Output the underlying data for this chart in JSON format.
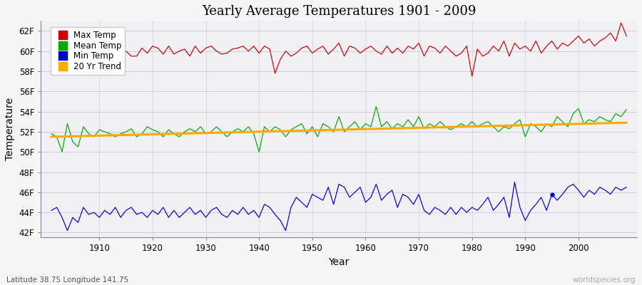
{
  "title": "Yearly Average Temperatures 1901 - 2009",
  "xlabel": "Year",
  "ylabel": "Temperature",
  "lat_lon_label": "Latitude 38.75 Longitude 141.75",
  "watermark": "worldspecies.org",
  "years_start": 1901,
  "years_end": 2009,
  "ylim_min": 41.5,
  "ylim_max": 63.0,
  "yticks": [
    42,
    44,
    46,
    48,
    50,
    52,
    54,
    56,
    58,
    60,
    62
  ],
  "ytick_labels": [
    "42F",
    "44F",
    "46F",
    "48F",
    "50F",
    "52F",
    "54F",
    "56F",
    "58F",
    "60F",
    "62F"
  ],
  "fig_facecolor": "#f5f5f5",
  "plot_facecolor": "#f0f0f5",
  "max_color": "#cc0000",
  "mean_color": "#00aa00",
  "min_color": "#0000cc",
  "trend_color": "#ffaa00",
  "legend_labels": [
    "Max Temp",
    "Mean Temp",
    "Min Temp",
    "20 Yr Trend"
  ],
  "max_temps": [
    59.2,
    58.3,
    57.8,
    61.5,
    60.2,
    60.5,
    59.8,
    61.0,
    60.3,
    60.8,
    60.5,
    60.2,
    60.0,
    59.7,
    60.0,
    59.5,
    59.5,
    60.3,
    59.8,
    60.5,
    60.3,
    59.7,
    60.5,
    59.7,
    60.0,
    60.2,
    59.5,
    60.5,
    59.8,
    60.3,
    60.5,
    60.0,
    59.7,
    59.8,
    60.2,
    60.3,
    60.5,
    60.0,
    60.5,
    59.8,
    60.5,
    60.2,
    57.8,
    59.2,
    60.0,
    59.5,
    59.8,
    60.3,
    60.5,
    59.8,
    60.2,
    60.5,
    59.7,
    60.2,
    60.8,
    59.5,
    60.5,
    60.3,
    59.8,
    60.2,
    60.5,
    60.0,
    59.7,
    60.5,
    59.8,
    60.3,
    59.8,
    60.5,
    60.2,
    60.8,
    59.5,
    60.5,
    60.3,
    59.8,
    60.5,
    60.0,
    59.5,
    59.8,
    60.5,
    57.5,
    60.2,
    59.5,
    59.8,
    60.5,
    60.0,
    61.0,
    59.5,
    60.8,
    60.2,
    60.5,
    60.0,
    61.0,
    59.8,
    60.5,
    61.0,
    60.2,
    60.8,
    60.5,
    61.0,
    61.5,
    60.8,
    61.2,
    60.5,
    61.0,
    61.3,
    61.8,
    61.0,
    62.8,
    61.5
  ],
  "mean_temps": [
    51.8,
    51.5,
    50.0,
    52.8,
    51.0,
    50.5,
    52.5,
    51.8,
    51.5,
    52.2,
    52.0,
    51.8,
    51.5,
    51.8,
    52.0,
    52.3,
    51.5,
    51.8,
    52.5,
    52.2,
    52.0,
    51.5,
    52.2,
    51.8,
    51.5,
    52.0,
    52.3,
    52.0,
    52.5,
    51.8,
    52.0,
    52.5,
    52.0,
    51.5,
    52.0,
    52.3,
    52.0,
    52.5,
    51.8,
    50.0,
    52.5,
    52.0,
    52.5,
    52.2,
    51.5,
    52.2,
    52.5,
    52.8,
    51.8,
    52.5,
    51.5,
    52.8,
    52.5,
    52.0,
    53.5,
    52.0,
    52.5,
    53.0,
    52.2,
    52.8,
    52.5,
    54.5,
    52.5,
    53.0,
    52.3,
    52.8,
    52.5,
    53.2,
    52.5,
    53.5,
    52.3,
    52.8,
    52.5,
    53.0,
    52.5,
    52.2,
    52.5,
    52.8,
    52.5,
    53.0,
    52.5,
    52.8,
    53.0,
    52.5,
    52.0,
    52.5,
    52.3,
    52.8,
    53.2,
    51.5,
    52.8,
    52.5,
    52.0,
    52.8,
    52.5,
    53.5,
    53.0,
    52.5,
    53.8,
    54.3,
    52.8,
    53.2,
    53.0,
    53.5,
    53.2,
    53.0,
    53.8,
    53.5,
    54.2
  ],
  "min_temps": [
    44.2,
    44.5,
    43.5,
    42.2,
    43.5,
    43.0,
    44.5,
    43.8,
    44.0,
    43.5,
    44.2,
    43.8,
    44.5,
    43.5,
    44.2,
    44.5,
    43.8,
    44.0,
    43.5,
    44.2,
    43.8,
    44.5,
    43.5,
    44.2,
    43.5,
    44.0,
    44.5,
    43.8,
    44.2,
    43.5,
    44.2,
    44.5,
    43.8,
    43.5,
    44.2,
    43.8,
    44.5,
    43.8,
    44.2,
    43.5,
    44.8,
    44.5,
    43.8,
    43.2,
    42.2,
    44.5,
    45.5,
    45.0,
    44.5,
    45.8,
    45.5,
    45.2,
    46.5,
    44.8,
    46.8,
    46.5,
    45.5,
    46.0,
    46.5,
    45.0,
    45.5,
    46.8,
    45.2,
    45.8,
    46.2,
    44.5,
    45.8,
    45.5,
    44.8,
    45.8,
    44.2,
    43.8,
    44.5,
    44.2,
    43.8,
    44.5,
    43.8,
    44.5,
    44.0,
    44.5,
    44.2,
    44.8,
    45.5,
    44.2,
    44.8,
    45.5,
    43.5,
    47.0,
    44.5,
    43.2,
    44.2,
    44.8,
    45.5,
    44.2,
    45.8,
    45.2,
    45.8,
    46.5,
    46.8,
    46.2,
    45.5,
    46.2,
    45.8,
    46.5,
    46.2,
    45.8,
    46.5,
    46.2,
    46.5
  ],
  "dot_year": 1995,
  "dot_temp": 45.8,
  "trend_x": [
    1901,
    2009
  ],
  "trend_y": [
    51.5,
    52.9
  ],
  "xticks": [
    1910,
    1920,
    1930,
    1940,
    1950,
    1960,
    1970,
    1980,
    1990,
    2000
  ],
  "xlim": [
    1899,
    2011
  ]
}
